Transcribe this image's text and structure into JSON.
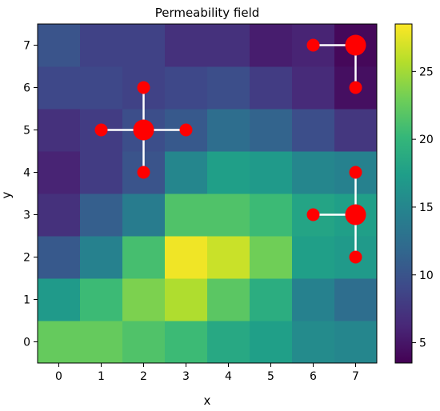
{
  "chart_data": {
    "type": "heatmap",
    "title": "Permeability field",
    "xlabel": "x",
    "ylabel": "y",
    "x_ticks": [
      "0",
      "1",
      "2",
      "3",
      "4",
      "5",
      "6",
      "7"
    ],
    "y_ticks": [
      "0",
      "1",
      "2",
      "3",
      "4",
      "5",
      "6",
      "7"
    ],
    "xlim": [
      -0.5,
      7.5
    ],
    "ylim": [
      -0.5,
      7.5
    ],
    "colormap": "viridis",
    "color_range": [
      3.5,
      28.5
    ],
    "colorbar_ticks": [
      5,
      10,
      15,
      20,
      25
    ],
    "colorbar_tick_labels": [
      "5",
      "10",
      "15",
      "20",
      "25"
    ],
    "grid": false,
    "z": [
      [
        22.5,
        22.5,
        21.5,
        20.5,
        18.5,
        17.5,
        15.5,
        15.0
      ],
      [
        17.0,
        20.5,
        23.5,
        25.5,
        22.0,
        19.0,
        14.5,
        12.5
      ],
      [
        10.5,
        14.5,
        21.0,
        28.0,
        26.5,
        23.0,
        17.5,
        17.0
      ],
      [
        7.0,
        11.0,
        14.0,
        21.5,
        21.5,
        20.5,
        18.0,
        17.5
      ],
      [
        6.0,
        8.0,
        10.0,
        15.0,
        17.5,
        17.0,
        15.0,
        14.5
      ],
      [
        7.0,
        8.0,
        9.5,
        10.5,
        12.5,
        11.5,
        9.5,
        7.5
      ],
      [
        9.0,
        9.0,
        8.5,
        9.0,
        9.5,
        8.0,
        6.5,
        4.5
      ],
      [
        10.0,
        8.5,
        8.5,
        7.0,
        7.0,
        5.5,
        6.0,
        4.0
      ]
    ],
    "wells": [
      {
        "x": 2,
        "y": 5,
        "size": "large",
        "arms": [
          [
            1,
            5
          ],
          [
            3,
            5
          ],
          [
            2,
            4
          ],
          [
            2,
            6
          ]
        ]
      },
      {
        "x": 7,
        "y": 3,
        "size": "large",
        "arms": [
          [
            6,
            3
          ],
          [
            7,
            2
          ],
          [
            7,
            4
          ]
        ]
      },
      {
        "x": 7,
        "y": 7,
        "size": "large",
        "arms": [
          [
            6,
            7
          ],
          [
            7,
            6
          ]
        ]
      }
    ],
    "well_color": "#ff0000",
    "connector_color": "#ffffff"
  }
}
